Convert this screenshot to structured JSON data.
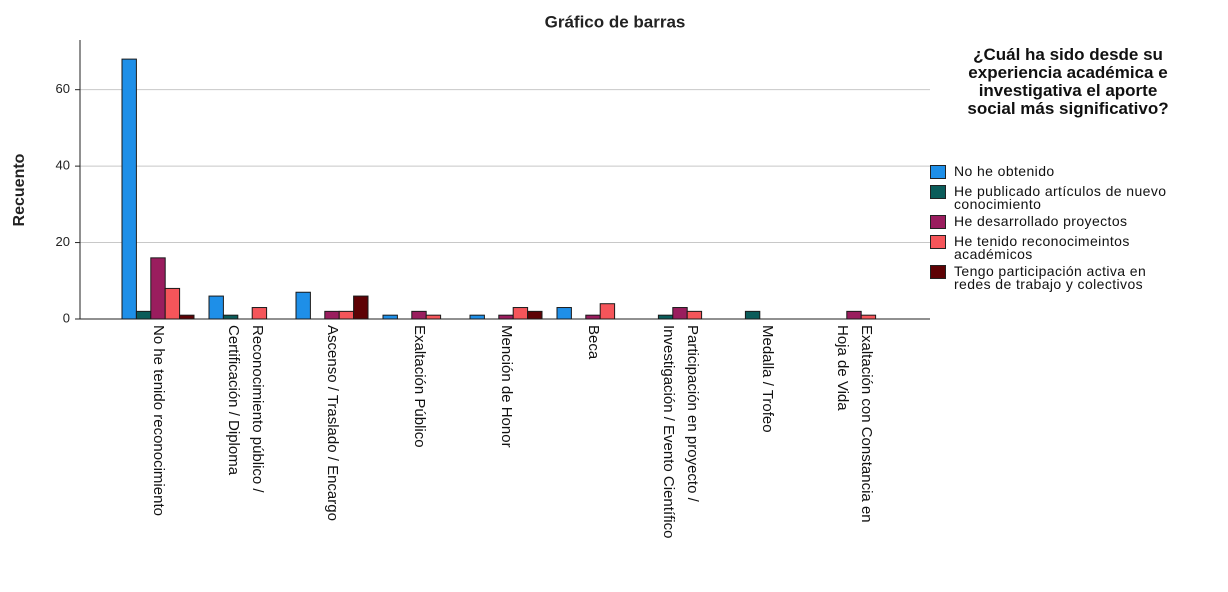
{
  "chart_data": {
    "type": "bar",
    "title": "Gráfico de barras",
    "y_label": "Recuento",
    "legend_title": "¿Cuál ha sido desde su\nexperiencia académica e\ninvestigativa el aporte\nsocial más significativo?",
    "legend_position": "right",
    "categories": [
      "No he tenido reconocimiento",
      "Reconocimiento público /\nCertificación / Diploma",
      "Ascenso / Traslado / Encargo",
      "Exaltación Público",
      "Mención de Honor",
      "Beca",
      "Participación en proyecto /\nInvestigación / Evento Científico",
      "Medalla / Trofeo",
      "Exaltación con Constancia en\nHoja de Vida"
    ],
    "series": [
      {
        "name": "No he obtenido",
        "color": "#1e8fe8",
        "values": [
          68,
          6,
          7,
          1,
          1,
          3,
          0,
          0,
          0
        ]
      },
      {
        "name": "He publicado artículos de nuevo\nconocimiento",
        "color": "#0b5c5a",
        "values": [
          2,
          1,
          0,
          0,
          0,
          0,
          1,
          2,
          0
        ]
      },
      {
        "name": "He desarrollado proyectos",
        "color": "#9a1d5e",
        "values": [
          16,
          0,
          2,
          2,
          1,
          1,
          3,
          0,
          2
        ]
      },
      {
        "name": "He tenido reconocimeintos\nacadémicos",
        "color": "#f5555a",
        "values": [
          8,
          3,
          2,
          1,
          3,
          4,
          2,
          0,
          1
        ]
      },
      {
        "name": "Tengo participación activa en\nredes de trabajo y colectivos",
        "color": "#5e0205",
        "values": [
          1,
          0,
          6,
          0,
          2,
          0,
          0,
          0,
          0
        ]
      }
    ],
    "ylim": [
      0,
      73
    ],
    "yticks": [
      0,
      20,
      40,
      60
    ],
    "grid": true
  }
}
